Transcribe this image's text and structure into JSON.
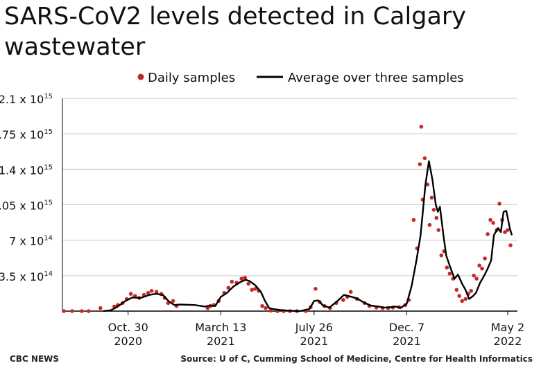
{
  "title": "SARS-CoV2 levels detected in Calgary wastewater",
  "footer": {
    "brand": "CBC NEWS",
    "source": "Source: U of C, Cumming School of Medicine, Centre for Health Informatics"
  },
  "colors": {
    "dots": "#c62828",
    "line": "#000000",
    "grid": "#c8c8c8",
    "axis": "#000000"
  },
  "chart_data": {
    "type": "line",
    "legend": [
      {
        "name": "Daily samples",
        "marker": "dot"
      },
      {
        "name": "Average over three samples",
        "marker": "line"
      }
    ],
    "legend_placement": "top",
    "y_ticks": [
      {
        "mantissa": "3.5 x 10",
        "exp": "14",
        "value": 350000000000000.0
      },
      {
        "mantissa": "7 x 10",
        "exp": "14",
        "value": 700000000000000.0
      },
      {
        "mantissa": "1.05 x 10",
        "exp": "15",
        "value": 1050000000000000.0
      },
      {
        "mantissa": "1.4 x 10",
        "exp": "15",
        "value": 1400000000000000.0
      },
      {
        "mantissa": "1.75 x 10",
        "exp": "15",
        "value": 1750000000000000.0
      },
      {
        "mantissa": "2.1 x 10",
        "exp": "15",
        "value": 2100000000000000.0
      }
    ],
    "ylim": [
      0,
      2100000000000000.0
    ],
    "grid": true,
    "x_range": [
      "2020-07-27",
      "2022-05-12"
    ],
    "x_ticks": [
      {
        "line1": "Oct. 30",
        "line2": "2020",
        "date": "2020-10-30"
      },
      {
        "line1": "March 13",
        "line2": "2021",
        "date": "2021-03-13"
      },
      {
        "line1": "July 26",
        "line2": "2021",
        "date": "2021-07-26"
      },
      {
        "line1": "Dec. 7",
        "line2": "2021",
        "date": "2021-12-07"
      },
      {
        "line1": "May 2",
        "line2": "2022",
        "date": "2022-05-02"
      }
    ],
    "series": [
      {
        "name": "Average over three samples",
        "points": [
          [
            "2020-09-24",
            1000000000000.0
          ],
          [
            "2020-10-05",
            8000000000000.0
          ],
          [
            "2020-10-15",
            45000000000000.0
          ],
          [
            "2020-10-25",
            95000000000000.0
          ],
          [
            "2020-11-05",
            135000000000000.0
          ],
          [
            "2020-11-17",
            130000000000000.0
          ],
          [
            "2020-11-30",
            160000000000000.0
          ],
          [
            "2020-12-10",
            172000000000000.0
          ],
          [
            "2020-12-20",
            155000000000000.0
          ],
          [
            "2020-12-28",
            95000000000000.0
          ],
          [
            "2021-01-05",
            60000000000000.0
          ],
          [
            "2021-01-13",
            65000000000000.0
          ],
          [
            "2021-02-03",
            60000000000000.0
          ],
          [
            "2021-02-18",
            45000000000000.0
          ],
          [
            "2021-02-25",
            55000000000000.0
          ],
          [
            "2021-03-05",
            50000000000000.0
          ],
          [
            "2021-03-13",
            140000000000000.0
          ],
          [
            "2021-03-22",
            180000000000000.0
          ],
          [
            "2021-03-31",
            240000000000000.0
          ],
          [
            "2021-04-10",
            285000000000000.0
          ],
          [
            "2021-04-18",
            310000000000000.0
          ],
          [
            "2021-04-24",
            295000000000000.0
          ],
          [
            "2021-05-02",
            255000000000000.0
          ],
          [
            "2021-05-10",
            190000000000000.0
          ],
          [
            "2021-05-16",
            100000000000000.0
          ],
          [
            "2021-05-22",
            30000000000000.0
          ],
          [
            "2021-05-28",
            20000000000000.0
          ],
          [
            "2021-06-07",
            10000000000000.0
          ],
          [
            "2021-06-19",
            5000000000000.0
          ],
          [
            "2021-07-05",
            0.0
          ],
          [
            "2021-07-19",
            20000000000000.0
          ],
          [
            "2021-07-26",
            100000000000000.0
          ],
          [
            "2021-08-01",
            105000000000000.0
          ],
          [
            "2021-08-08",
            55000000000000.0
          ],
          [
            "2021-08-17",
            35000000000000.0
          ],
          [
            "2021-08-28",
            95000000000000.0
          ],
          [
            "2021-09-07",
            160000000000000.0
          ],
          [
            "2021-09-16",
            145000000000000.0
          ],
          [
            "2021-09-26",
            125000000000000.0
          ],
          [
            "2021-10-06",
            85000000000000.0
          ],
          [
            "2021-10-16",
            55000000000000.0
          ],
          [
            "2021-10-27",
            45000000000000.0
          ],
          [
            "2021-11-05",
            35000000000000.0
          ],
          [
            "2021-11-14",
            40000000000000.0
          ],
          [
            "2021-11-21",
            45000000000000.0
          ],
          [
            "2021-11-28",
            30000000000000.0
          ],
          [
            "2021-12-07",
            75000000000000.0
          ],
          [
            "2021-12-14",
            250000000000000.0
          ],
          [
            "2021-12-21",
            500000000000000.0
          ],
          [
            "2021-12-27",
            750000000000000.0
          ],
          [
            "2022-01-03",
            1250000000000000.0
          ],
          [
            "2022-01-08",
            1480000000000000.0
          ],
          [
            "2022-01-13",
            1300000000000000.0
          ],
          [
            "2022-01-18",
            1050000000000000.0
          ],
          [
            "2022-01-21",
            980000000000000.0
          ],
          [
            "2022-01-24",
            1030000000000000.0
          ],
          [
            "2022-01-29",
            750000000000000.0
          ],
          [
            "2022-02-02",
            550000000000000.0
          ],
          [
            "2022-02-08",
            430000000000000.0
          ],
          [
            "2022-02-14",
            320000000000000.0
          ],
          [
            "2022-02-19",
            360000000000000.0
          ],
          [
            "2022-02-25",
            270000000000000.0
          ],
          [
            "2022-03-02",
            210000000000000.0
          ],
          [
            "2022-03-07",
            120000000000000.0
          ],
          [
            "2022-03-13",
            150000000000000.0
          ],
          [
            "2022-03-17",
            180000000000000.0
          ],
          [
            "2022-03-23",
            280000000000000.0
          ],
          [
            "2022-03-29",
            350000000000000.0
          ],
          [
            "2022-04-03",
            420000000000000.0
          ],
          [
            "2022-04-08",
            500000000000000.0
          ],
          [
            "2022-04-12",
            750000000000000.0
          ],
          [
            "2022-04-18",
            820000000000000.0
          ],
          [
            "2022-04-22",
            780000000000000.0
          ],
          [
            "2022-04-26",
            980000000000000.0
          ],
          [
            "2022-04-30",
            990000000000000.0
          ],
          [
            "2022-05-05",
            820000000000000.0
          ],
          [
            "2022-05-08",
            750000000000000.0
          ]
        ]
      },
      {
        "name": "Daily samples",
        "points": [
          [
            "2020-07-29",
            0.0
          ],
          [
            "2020-08-10",
            0.0
          ],
          [
            "2020-08-24",
            0.0
          ],
          [
            "2020-09-03",
            0.0
          ],
          [
            "2020-09-20",
            30000000000000.0
          ],
          [
            "2020-10-10",
            45000000000000.0
          ],
          [
            "2020-10-15",
            60000000000000.0
          ],
          [
            "2020-10-22",
            80000000000000.0
          ],
          [
            "2020-10-28",
            120000000000000.0
          ],
          [
            "2020-11-03",
            170000000000000.0
          ],
          [
            "2020-11-09",
            150000000000000.0
          ],
          [
            "2020-11-15",
            130000000000000.0
          ],
          [
            "2020-11-22",
            160000000000000.0
          ],
          [
            "2020-11-28",
            180000000000000.0
          ],
          [
            "2020-12-03",
            200000000000000.0
          ],
          [
            "2020-12-10",
            190000000000000.0
          ],
          [
            "2020-12-17",
            170000000000000.0
          ],
          [
            "2020-12-22",
            130000000000000.0
          ],
          [
            "2020-12-27",
            80000000000000.0
          ],
          [
            "2021-01-03",
            100000000000000.0
          ],
          [
            "2021-01-08",
            50000000000000.0
          ],
          [
            "2021-02-22",
            30000000000000.0
          ],
          [
            "2021-02-26",
            50000000000000.0
          ],
          [
            "2021-03-03",
            60000000000000.0
          ],
          [
            "2021-03-10",
            100000000000000.0
          ],
          [
            "2021-03-18",
            180000000000000.0
          ],
          [
            "2021-03-24",
            230000000000000.0
          ],
          [
            "2021-03-29",
            290000000000000.0
          ],
          [
            "2021-04-05",
            280000000000000.0
          ],
          [
            "2021-04-12",
            320000000000000.0
          ],
          [
            "2021-04-17",
            330000000000000.0
          ],
          [
            "2021-04-22",
            270000000000000.0
          ],
          [
            "2021-04-27",
            210000000000000.0
          ],
          [
            "2021-05-02",
            220000000000000.0
          ],
          [
            "2021-05-07",
            200000000000000.0
          ],
          [
            "2021-05-12",
            50000000000000.0
          ],
          [
            "2021-05-17",
            30000000000000.0
          ],
          [
            "2021-05-24",
            5000000000000.0
          ],
          [
            "2021-06-03",
            0.0
          ],
          [
            "2021-06-12",
            0.0
          ],
          [
            "2021-06-21",
            0.0
          ],
          [
            "2021-07-01",
            0.0
          ],
          [
            "2021-07-14",
            0.0
          ],
          [
            "2021-07-21",
            40000000000000.0
          ],
          [
            "2021-07-28",
            220000000000000.0
          ],
          [
            "2021-08-03",
            90000000000000.0
          ],
          [
            "2021-08-10",
            50000000000000.0
          ],
          [
            "2021-08-18",
            30000000000000.0
          ],
          [
            "2021-08-27",
            80000000000000.0
          ],
          [
            "2021-09-06",
            110000000000000.0
          ],
          [
            "2021-09-12",
            140000000000000.0
          ],
          [
            "2021-09-17",
            190000000000000.0
          ],
          [
            "2021-09-26",
            120000000000000.0
          ],
          [
            "2021-10-07",
            80000000000000.0
          ],
          [
            "2021-10-14",
            50000000000000.0
          ],
          [
            "2021-10-24",
            35000000000000.0
          ],
          [
            "2021-11-02",
            30000000000000.0
          ],
          [
            "2021-11-10",
            30000000000000.0
          ],
          [
            "2021-11-17",
            35000000000000.0
          ],
          [
            "2021-11-26",
            40000000000000.0
          ],
          [
            "2021-12-05",
            60000000000000.0
          ],
          [
            "2021-12-10",
            110000000000000.0
          ],
          [
            "2021-12-17",
            900000000000000.0
          ],
          [
            "2021-12-22",
            620000000000000.0
          ],
          [
            "2021-12-26",
            1450000000000000.0
          ],
          [
            "2021-12-28",
            1820000000000000.0
          ],
          [
            "2021-12-30",
            1100000000000000.0
          ],
          [
            "2022-01-02",
            1510000000000000.0
          ],
          [
            "2022-01-06",
            1250000000000000.0
          ],
          [
            "2022-01-09",
            850000000000000.0
          ],
          [
            "2022-01-12",
            1120000000000000.0
          ],
          [
            "2022-01-15",
            1000000000000000.0
          ],
          [
            "2022-01-19",
            920000000000000.0
          ],
          [
            "2022-01-22",
            800000000000000.0
          ],
          [
            "2022-01-26",
            550000000000000.0
          ],
          [
            "2022-01-30",
            590000000000000.0
          ],
          [
            "2022-02-03",
            430000000000000.0
          ],
          [
            "2022-02-07",
            370000000000000.0
          ],
          [
            "2022-02-12",
            320000000000000.0
          ],
          [
            "2022-02-17",
            210000000000000.0
          ],
          [
            "2022-02-21",
            150000000000000.0
          ],
          [
            "2022-02-25",
            100000000000000.0
          ],
          [
            "2022-03-02",
            120000000000000.0
          ],
          [
            "2022-03-06",
            170000000000000.0
          ],
          [
            "2022-03-10",
            200000000000000.0
          ],
          [
            "2022-03-14",
            350000000000000.0
          ],
          [
            "2022-03-18",
            320000000000000.0
          ],
          [
            "2022-03-22",
            450000000000000.0
          ],
          [
            "2022-03-26",
            420000000000000.0
          ],
          [
            "2022-03-30",
            520000000000000.0
          ],
          [
            "2022-04-03",
            760000000000000.0
          ],
          [
            "2022-04-07",
            900000000000000.0
          ],
          [
            "2022-04-11",
            870000000000000.0
          ],
          [
            "2022-04-16",
            800000000000000.0
          ],
          [
            "2022-04-20",
            1060000000000000.0
          ],
          [
            "2022-04-24",
            900000000000000.0
          ],
          [
            "2022-04-28",
            780000000000000.0
          ],
          [
            "2022-05-02",
            800000000000000.0
          ],
          [
            "2022-05-06",
            650000000000000.0
          ]
        ]
      }
    ]
  }
}
